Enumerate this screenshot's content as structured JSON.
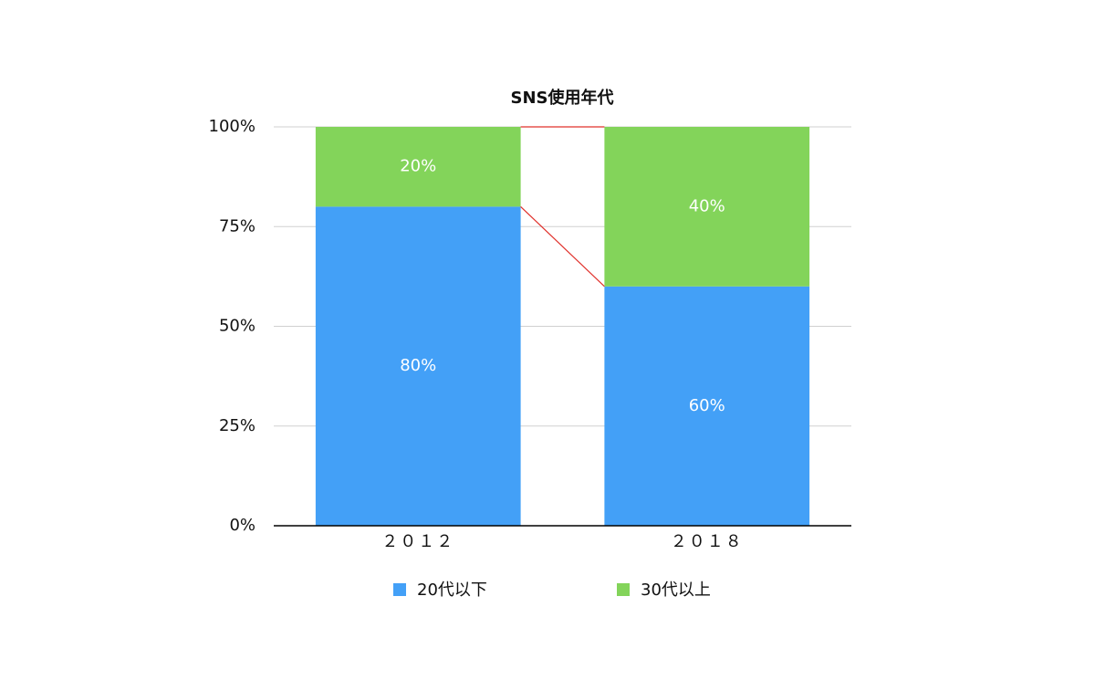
{
  "chart_data": {
    "type": "stacked_bar",
    "title": "SNS使用年代",
    "categories": [
      "２０１２",
      "２０１８"
    ],
    "series": [
      {
        "name": "20代以下",
        "color": "#43a0f7",
        "values": [
          80,
          60
        ],
        "value_labels": [
          "80%",
          "60%"
        ]
      },
      {
        "name": "30代以上",
        "color": "#83d45a",
        "values": [
          20,
          40
        ],
        "value_labels": [
          "20%",
          "40%"
        ]
      }
    ],
    "ylim": [
      0,
      100
    ],
    "yticks": [
      {
        "value": 0,
        "label": "0%"
      },
      {
        "value": 25,
        "label": "25%"
      },
      {
        "value": 50,
        "label": "50%"
      },
      {
        "value": 75,
        "label": "75%"
      },
      {
        "value": 100,
        "label": "100%"
      }
    ],
    "grid": true,
    "connector_color": "#e0302a",
    "legend": "bottom"
  }
}
